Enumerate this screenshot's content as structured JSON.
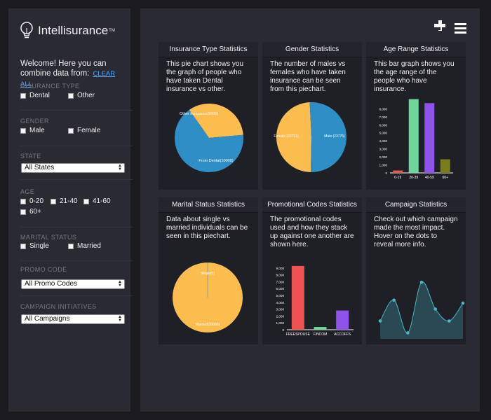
{
  "brand": {
    "name": "Intellisurance",
    "tm": "TM"
  },
  "sidebar": {
    "welcome": "Welcome! Here you can combine data from:",
    "clear_all": "CLEAR ALL",
    "insurance_type": {
      "label": "INSURANCE TYPE",
      "options": [
        "Dental",
        "Other"
      ]
    },
    "gender": {
      "label": "GENDER",
      "options": [
        "Male",
        "Female"
      ]
    },
    "state": {
      "label": "STATE",
      "value": "All States"
    },
    "age": {
      "label": "AGE",
      "options": [
        "0-20",
        "21-40",
        "41-60",
        "60+"
      ]
    },
    "marital": {
      "label": "MARITAL STATUS",
      "options": [
        "Single",
        "Married"
      ]
    },
    "promo": {
      "label": "PROMO CODE",
      "value": "All Promo Codes"
    },
    "campaign": {
      "label": "CAMPAIGN INITIATIVES",
      "value": "All Campaigns"
    }
  },
  "cards": {
    "insurance": {
      "title": "Insurance Type Statistics",
      "desc": "This pie chart shows you the graph of people who have taken Dental insurance vs other.",
      "slice_labels": [
        "Other Insurance(5000)",
        "From Dental(10000)"
      ]
    },
    "gender": {
      "title": "Gender Statistics",
      "desc": "The number of males vs females who have taken insurance can be seen from this piechart.",
      "slice_labels": [
        "Female (22751)",
        "Male (23775)"
      ]
    },
    "age": {
      "title": "Age Range Statistics",
      "desc": "This bar graph shows you the age range of the people who have insurance."
    },
    "marital": {
      "title": "Marital Status Statistics",
      "desc": "Data about single vs married individuals can be seen in this piechart.",
      "slice_labels": [
        "Single(0)",
        "Married(20000)"
      ]
    },
    "promo": {
      "title": "Promotional Codes Statistics",
      "desc": "The promotional codes used and how they stack up against one another are shown here."
    },
    "campaign": {
      "title": "Campaign Statistics",
      "desc": "Check out which campaign made the most impact. Hover on the dots to reveal more info."
    }
  },
  "chart_data": [
    {
      "type": "pie",
      "title": "Insurance Type Statistics",
      "categories": [
        "Other Insurance",
        "From Dental"
      ],
      "values": [
        5000,
        10000
      ],
      "colors": [
        "#fbbd4e",
        "#2e8ec6"
      ]
    },
    {
      "type": "pie",
      "title": "Gender Statistics",
      "categories": [
        "Female",
        "Male"
      ],
      "values": [
        22751,
        23775
      ],
      "colors": [
        "#fbbd4e",
        "#2e8ec6"
      ]
    },
    {
      "type": "bar",
      "title": "Age Range Statistics",
      "categories": [
        "0-19",
        "20-39",
        "40-59",
        "60+"
      ],
      "values": [
        300,
        9200,
        8700,
        1700
      ],
      "colors": [
        "#ef5350",
        "#6ed59b",
        "#8e54e9",
        "#7a7d1c"
      ],
      "ylim": [
        0,
        9600
      ],
      "yticks": [
        "8,000",
        "7,000",
        "6,000",
        "5,000",
        "4,000",
        "3,000",
        "2,000",
        "1,000",
        "0"
      ],
      "ytick_values": [
        8000,
        7000,
        6000,
        5000,
        4000,
        3000,
        2000,
        1000,
        0
      ]
    },
    {
      "type": "pie",
      "title": "Marital Status Statistics",
      "categories": [
        "Single",
        "Married"
      ],
      "values": [
        0,
        20000
      ],
      "colors": [
        "#2e8ec6",
        "#fbbd4e"
      ]
    },
    {
      "type": "bar",
      "title": "Promotional Codes Statistics",
      "categories": [
        "FREESPOUSE",
        "FINCOM",
        "ACCOFFS"
      ],
      "values": [
        9300,
        400,
        2800
      ],
      "colors": [
        "#ef5350",
        "#6ed59b",
        "#8e54e9"
      ],
      "ylim": [
        0,
        9800
      ],
      "yticks": [
        "9,000",
        "8,000",
        "7,000",
        "6,000",
        "5,000",
        "4,000",
        "3,000",
        "2,000",
        "1,000",
        "0"
      ],
      "ytick_values": [
        9000,
        8000,
        7000,
        6000,
        5000,
        4000,
        3000,
        2000,
        1000,
        0
      ]
    },
    {
      "type": "area",
      "title": "Campaign Statistics",
      "x": [
        0,
        1,
        2,
        3,
        4,
        5,
        6
      ],
      "values": [
        30,
        65,
        10,
        95,
        50,
        30,
        60
      ],
      "ylim": [
        0,
        100
      ],
      "color": "#49b8c8"
    }
  ]
}
